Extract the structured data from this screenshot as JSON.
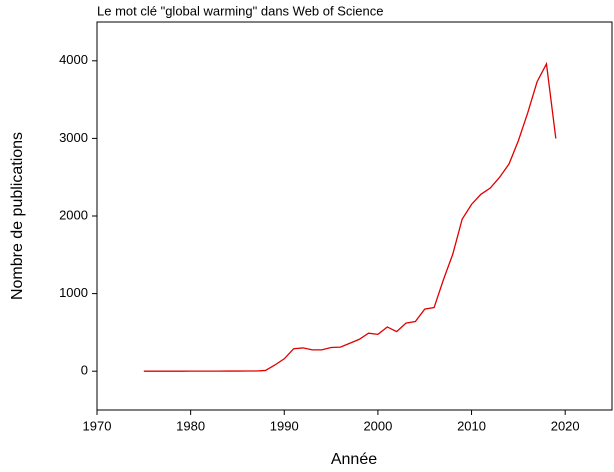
{
  "chart_data": {
    "type": "line",
    "title": "Le mot clé \"global warming\" dans Web of Science",
    "x_label": "Année",
    "y_label": "Nombre de publications",
    "x": [
      1975,
      1976,
      1977,
      1978,
      1979,
      1980,
      1981,
      1982,
      1983,
      1984,
      1985,
      1986,
      1987,
      1988,
      1989,
      1990,
      1991,
      1992,
      1993,
      1994,
      1995,
      1996,
      1997,
      1998,
      1999,
      2000,
      2001,
      2002,
      2003,
      2004,
      2005,
      2006,
      2007,
      2008,
      2009,
      2010,
      2011,
      2012,
      2013,
      2014,
      2015,
      2016,
      2017,
      2018,
      2019
    ],
    "series": [
      {
        "name": "global warming",
        "color": "#e00000",
        "values": [
          0,
          0,
          0,
          0,
          0,
          1,
          1,
          1,
          1,
          2,
          2,
          3,
          3,
          10,
          80,
          160,
          290,
          300,
          275,
          275,
          305,
          310,
          360,
          410,
          490,
          475,
          570,
          510,
          620,
          640,
          800,
          820,
          1180,
          1510,
          1960,
          2150,
          2280,
          2360,
          2500,
          2670,
          2970,
          3330,
          3730,
          3960,
          3000
        ]
      }
    ],
    "xlim": [
      1970,
      2025
    ],
    "xticks": [
      1970,
      1980,
      1990,
      2000,
      2010,
      2020
    ],
    "ylim": [
      -500,
      4500
    ],
    "yticks": [
      0,
      1000,
      2000,
      3000,
      4000
    ]
  }
}
